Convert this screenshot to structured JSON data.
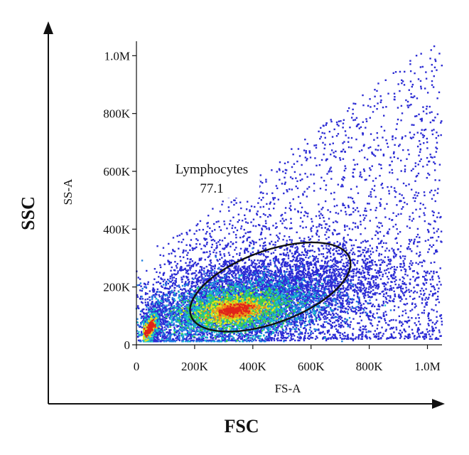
{
  "chart_data": {
    "type": "scatter",
    "subtype": "flow-cytometry pseudocolor density",
    "outer_x_label": "FSC",
    "outer_y_label": "SSC",
    "xlabel": "FS-A",
    "ylabel": "SS-A",
    "xlim": [
      0,
      1050000
    ],
    "ylim": [
      0,
      1050000
    ],
    "x_ticks": [
      0,
      200000,
      400000,
      600000,
      800000,
      1000000
    ],
    "x_tick_labels": [
      "0",
      "200K",
      "400K",
      "600K",
      "800K",
      "1.0M"
    ],
    "y_ticks": [
      0,
      200000,
      400000,
      600000,
      800000,
      1000000
    ],
    "y_tick_labels": [
      "0",
      "200K",
      "400K",
      "600K",
      "800K",
      "1.0M"
    ],
    "grid": false,
    "density_colormap": [
      "#2b2bd4",
      "#1f7fe0",
      "#19c3c8",
      "#3fcf4a",
      "#e6e21a",
      "#f08a1a",
      "#e0241a"
    ],
    "populations": [
      {
        "center_x": 340000,
        "center_y": 110000,
        "spread_x": 210000,
        "spread_y": 110000,
        "density": "high"
      },
      {
        "center_x": 45000,
        "center_y": 55000,
        "spread_x": 25000,
        "spread_y": 35000,
        "density": "very high"
      }
    ],
    "gate": {
      "name": "Lymphocytes",
      "value": "77.1",
      "shape": "ellipse",
      "center_x": 460000,
      "center_y": 200000,
      "rx": 290000,
      "ry": 125000,
      "rotation_deg": -20
    }
  }
}
